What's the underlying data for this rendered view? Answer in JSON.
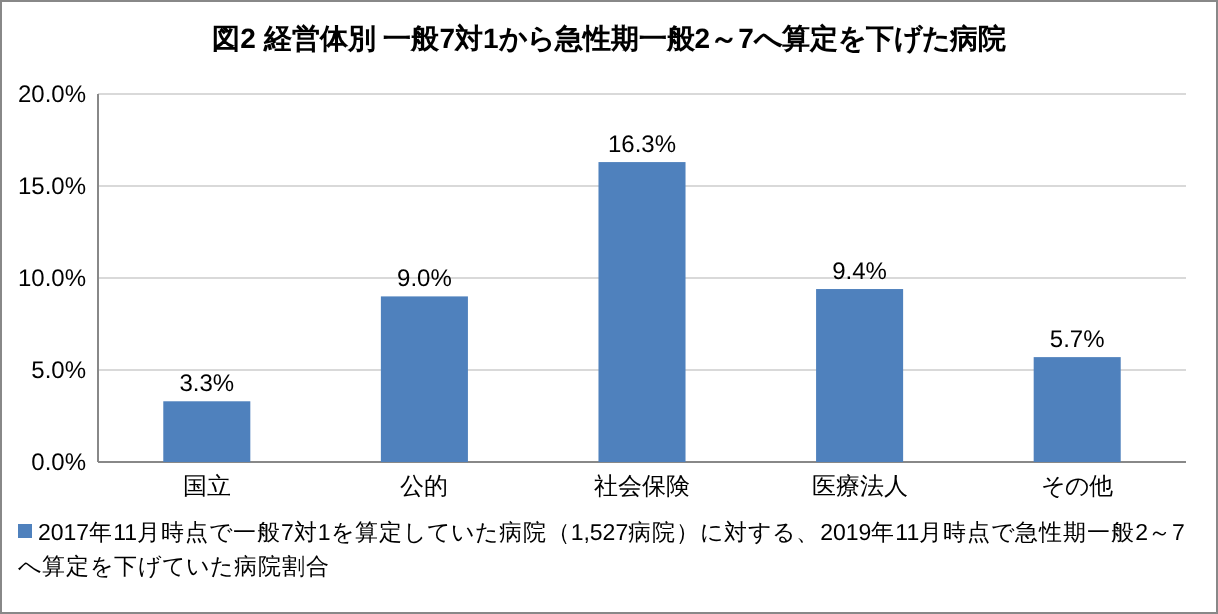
{
  "chart_data": {
    "type": "bar",
    "title": "図2 経営体別 一般7対1から急性期一般2～7へ算定を下げた病院",
    "categories": [
      "国立",
      "公的",
      "社会保険",
      "医療法人",
      "その他"
    ],
    "series": [
      {
        "name": "2017年11月時点で一般7対1を算定していた病院（1,527病院）に対する、2019年11月時点で急性期一般2～7へ算定を下げていた病院割合",
        "color": "#4f81bd",
        "values": [
          3.3,
          9.0,
          16.3,
          9.4,
          5.7
        ],
        "value_labels": [
          "3.3%",
          "9.0%",
          "16.3%",
          "9.4%",
          "5.7%"
        ]
      }
    ],
    "ylim": [
      0,
      20
    ],
    "yticks": [
      {
        "value": 0,
        "label": "0.0%"
      },
      {
        "value": 5,
        "label": "5.0%"
      },
      {
        "value": 10,
        "label": "10.0%"
      },
      {
        "value": 15,
        "label": "15.0%"
      },
      {
        "value": 20,
        "label": "20.0%"
      }
    ],
    "grid": "y",
    "legend": "bottom"
  }
}
